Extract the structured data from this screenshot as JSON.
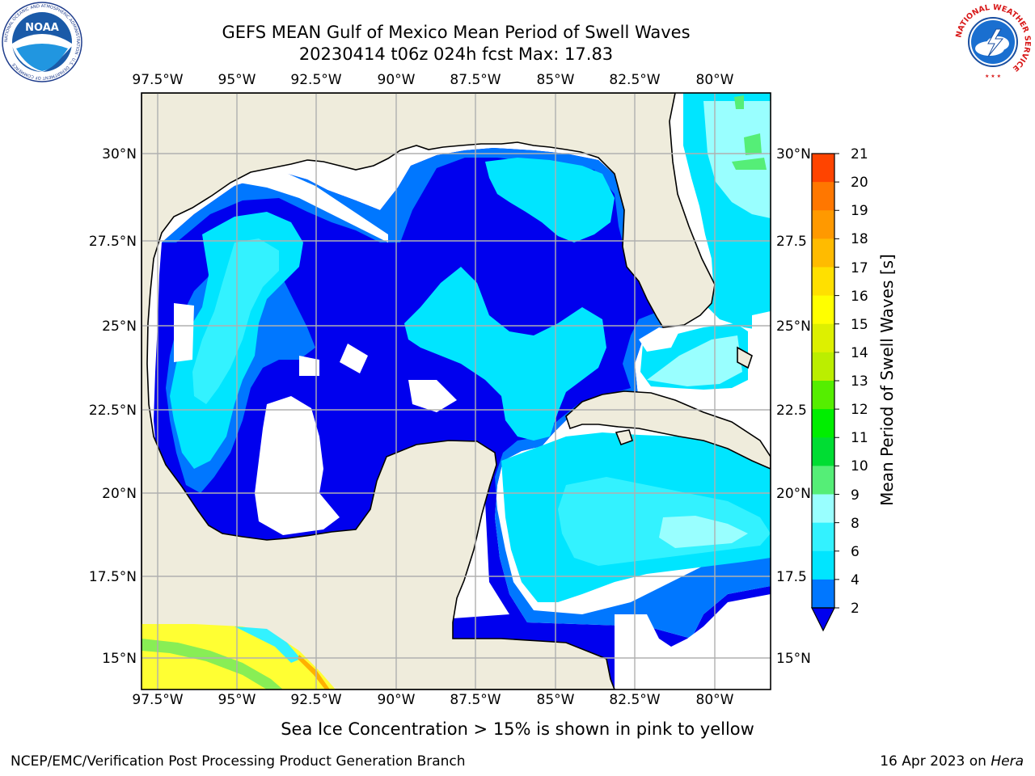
{
  "title": {
    "line1": "GEFS MEAN Gulf of Mexico Mean Period of Swell Waves",
    "line2": "20230414 t06z 024h fcst   Max: 17.83"
  },
  "axes": {
    "lon_labels": [
      "97.5°W",
      "95°W",
      "92.5°W",
      "90°W",
      "87.5°W",
      "85°W",
      "82.5°W",
      "80°W"
    ],
    "lat_labels_left": [
      "30°N",
      "27.5°N",
      "25°N",
      "22.5°N",
      "20°N",
      "17.5°N",
      "15°N"
    ],
    "lat_labels_right": [
      "30°N",
      "27.5",
      "25°N",
      "22.5",
      "20°N",
      "17.5",
      "15°N"
    ]
  },
  "colorbar": {
    "label": "Mean Period of Swell Waves [s]",
    "ticks": [
      "2",
      "4",
      "6",
      "8",
      "9",
      "10",
      "11",
      "12",
      "13",
      "14",
      "15",
      "16",
      "17",
      "18",
      "19",
      "20",
      "21"
    ],
    "colors": [
      "#0077ff",
      "#00e5ff",
      "#33f2ff",
      "#99ffff",
      "#55ee77",
      "#00dd33",
      "#00ee00",
      "#55ee00",
      "#bbee00",
      "#ddf000",
      "#ffff00",
      "#ffe000",
      "#ffbb00",
      "#ff9900",
      "#ff7700",
      "#ff4400"
    ],
    "extend_color": "#0000ee"
  },
  "map_colors": {
    "land": "#efecdc",
    "sea": "#ffffff",
    "c2": "#0000ee",
    "c4": "#0077ff",
    "c6": "#00e5ff",
    "c8": "#33f2ff",
    "c9": "#99ffff",
    "ice_yellow": "#ffff33",
    "ice_green": "#88ee55"
  },
  "note": "Sea Ice Concentration > 15% is shown in pink to yellow",
  "footer": {
    "left": "NCEP/EMC/Verification Post Processing Product Generation Branch",
    "right_prefix": "16 Apr 2023 on ",
    "right_host": "Hera"
  },
  "logos": {
    "noaa": "NOAA",
    "noaa_ring": "NATIONAL OCEANIC AND ATMOSPHERIC ADMINISTRATION · U.S. DEPARTMENT OF COMMERCE",
    "nws_ring": "NATIONAL WEATHER SERVICE"
  }
}
